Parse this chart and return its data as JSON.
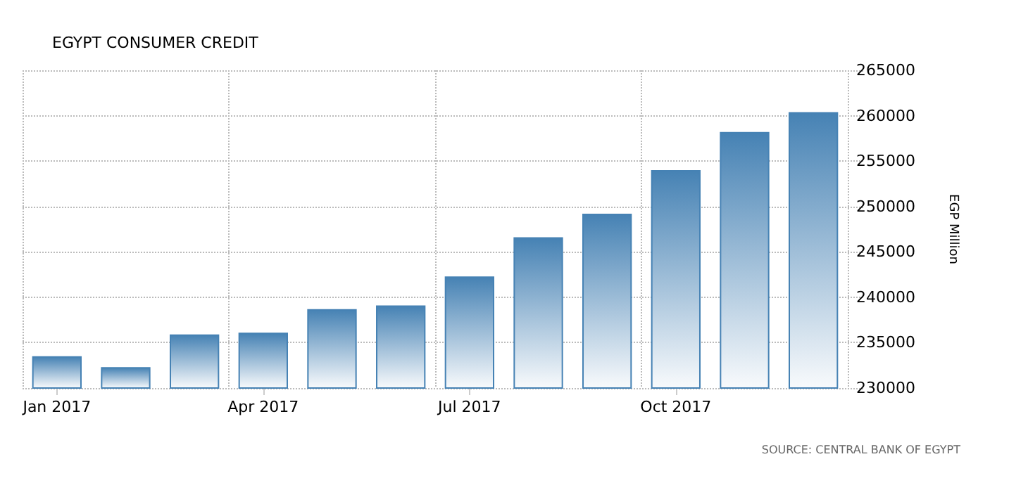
{
  "chart_data": {
    "type": "bar",
    "title": "EGYPT CONSUMER CREDIT",
    "ylabel": "EGP Million",
    "categories": [
      "Jan 2017",
      null,
      null,
      "Apr 2017",
      null,
      null,
      "Jul 2017",
      null,
      null,
      "Oct 2017",
      null,
      null
    ],
    "values": [
      233500,
      232300,
      235900,
      236100,
      238700,
      239100,
      242300,
      246600,
      249200,
      254000,
      258200,
      260400
    ],
    "color": "#4682b4",
    "ylim": [
      230000,
      265000
    ],
    "yticks": [
      230000,
      235000,
      240000,
      245000,
      250000,
      255000,
      260000,
      265000
    ],
    "grid": true,
    "annotations": [
      "SOURCE: CENTRAL BANK OF EGYPT"
    ]
  }
}
